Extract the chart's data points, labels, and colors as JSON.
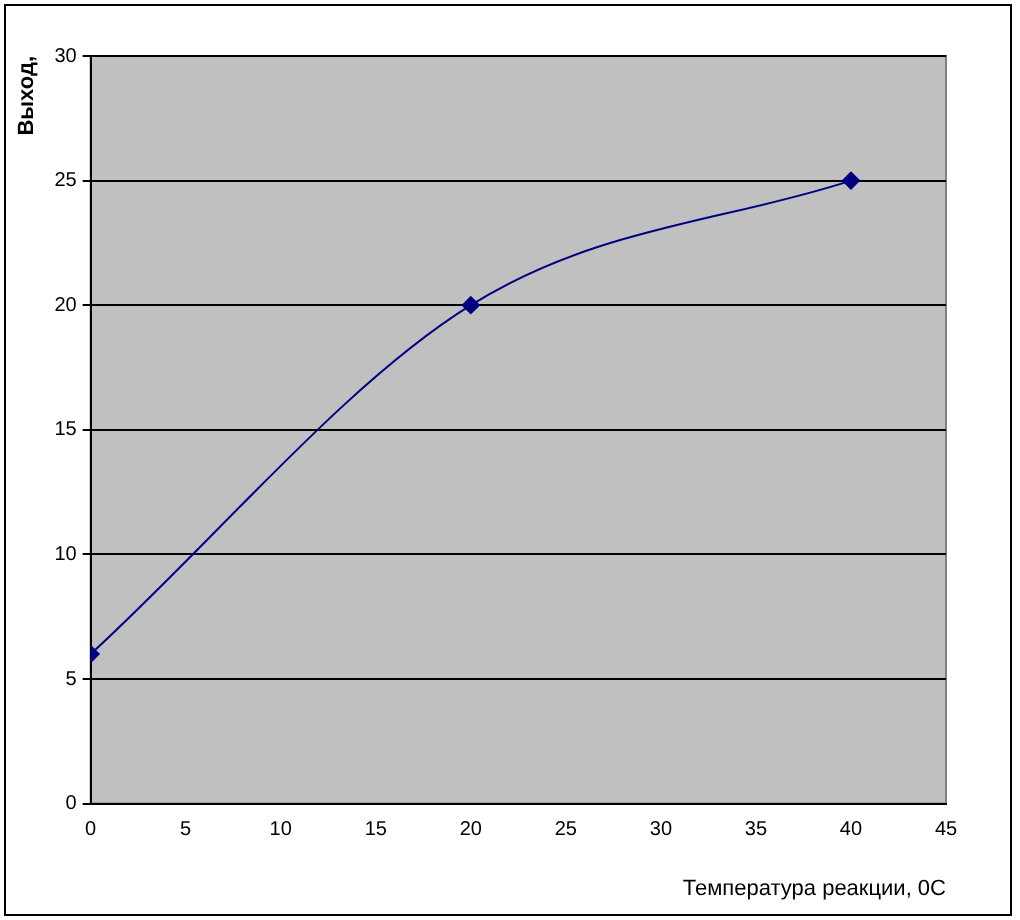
{
  "chart_data": {
    "type": "line",
    "xlabel": "Температура реакции, 0С",
    "ylabel": "Выход,",
    "x": [
      0,
      20,
      40
    ],
    "series": [
      {
        "color": "#000080",
        "values": [
          6,
          20,
          25
        ]
      }
    ],
    "xlim": [
      0,
      45
    ],
    "xticks": [
      0,
      5,
      10,
      15,
      20,
      25,
      30,
      35,
      40,
      45
    ],
    "ylim": [
      0,
      30
    ],
    "yticks": [
      0,
      5,
      10,
      15,
      20,
      25,
      30
    ],
    "grid": "y",
    "legend": false,
    "marker": "diamond",
    "line_style": "solid"
  }
}
